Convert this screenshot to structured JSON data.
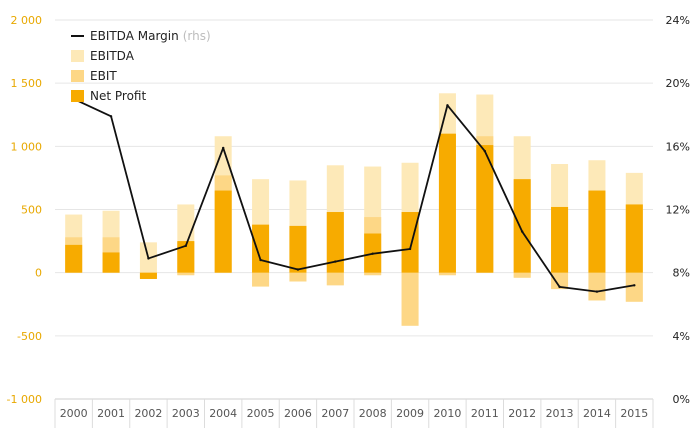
{
  "chart_data": {
    "type": "bar",
    "categories": [
      "2000",
      "2001",
      "2002",
      "2003",
      "2004",
      "2005",
      "2006",
      "2007",
      "2008",
      "2009",
      "2010",
      "2011",
      "2012",
      "2013",
      "2014",
      "2015"
    ],
    "series": [
      {
        "name": "EBITDA",
        "type": "bar",
        "axis": "left",
        "positive": [
          460,
          490,
          240,
          540,
          1080,
          740,
          730,
          850,
          840,
          870,
          1420,
          1410,
          1080,
          860,
          890,
          790
        ],
        "negative": [
          0,
          0,
          -40,
          -20,
          0,
          -110,
          -70,
          -100,
          -20,
          -420,
          -20,
          0,
          -40,
          -130,
          -220,
          -230
        ],
        "color": "#fde9b8"
      },
      {
        "name": "EBIT",
        "type": "bar",
        "axis": "left",
        "positive": [
          280,
          280,
          0,
          240,
          770,
          380,
          370,
          480,
          440,
          480,
          1100,
          1080,
          740,
          520,
          650,
          540
        ],
        "negative": [
          0,
          0,
          -40,
          -20,
          0,
          -110,
          -70,
          -100,
          -20,
          -420,
          -20,
          0,
          -40,
          -130,
          -220,
          -230
        ],
        "color": "#fdd786"
      },
      {
        "name": "Net Profit",
        "type": "bar",
        "axis": "left",
        "positive": [
          220,
          160,
          0,
          250,
          650,
          380,
          370,
          480,
          310,
          480,
          1100,
          1010,
          740,
          520,
          650,
          540
        ],
        "negative": [
          0,
          0,
          -50,
          0,
          0,
          0,
          0,
          0,
          0,
          0,
          0,
          0,
          0,
          0,
          0,
          0
        ],
        "color": "#f7ab00"
      },
      {
        "name": "EBITDA Margin",
        "name_suffix": "(rhs)",
        "type": "line",
        "axis": "right",
        "values": [
          19.0,
          17.9,
          8.9,
          9.7,
          15.9,
          8.8,
          8.2,
          8.7,
          9.2,
          9.5,
          18.6,
          15.7,
          10.6,
          7.1,
          6.8,
          7.2
        ],
        "color": "#111111"
      }
    ],
    "y_left": {
      "ylim": [
        -1000,
        2000
      ],
      "ticks": [
        -1000,
        -500,
        0,
        500,
        1000,
        1500,
        2000
      ],
      "tick_labels": [
        "-1 000",
        "-500",
        "0",
        "500",
        "1 000",
        "1 500",
        "2 000"
      ]
    },
    "y_right": {
      "ylim": [
        0,
        24
      ],
      "ticks": [
        0,
        4,
        8,
        12,
        16,
        20,
        24
      ],
      "tick_labels": [
        "0%",
        "4%",
        "8%",
        "12%",
        "16%",
        "20%",
        "24%"
      ]
    },
    "legend": {
      "position": "top-left",
      "items": [
        {
          "label": "EBITDA Margin",
          "suffix": "(rhs)",
          "kind": "line",
          "color": "#111111"
        },
        {
          "label": "EBITDA",
          "kind": "box",
          "color": "#fde9b8"
        },
        {
          "label": "EBIT",
          "kind": "box",
          "color": "#fdd786"
        },
        {
          "label": "Net Profit",
          "kind": "box",
          "color": "#f7ab00"
        }
      ]
    },
    "grid": true,
    "title": "",
    "xlabel": "",
    "ylabel": ""
  }
}
